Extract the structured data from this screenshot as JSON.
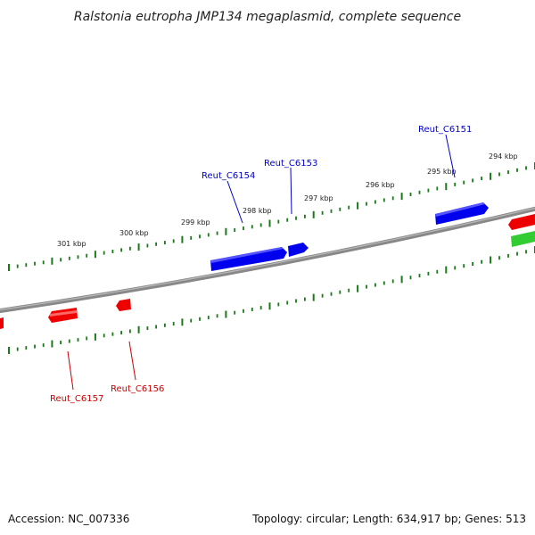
{
  "title": "Ralstonia eutropha JMP134 megaplasmid, complete sequence",
  "footer": {
    "accession": "Accession: NC_007336",
    "summary": "Topology: circular; Length: 634,917 bp; Genes: 513"
  },
  "colors": {
    "backbone": "#7a7a7a",
    "ticks": "#1a7a1a",
    "forward_gene": "#0000ee",
    "reverse_gene": "#ee0000",
    "other_gene": "#33cc33"
  },
  "scale_labels": [
    "301 kbp",
    "300 kbp",
    "299 kbp",
    "298 kbp",
    "297 kbp",
    "296 kbp",
    "295 kbp",
    "294 kbp"
  ],
  "genes": [
    {
      "name": "Reut_C6151",
      "strand": "forward"
    },
    {
      "name": "Reut_C6153",
      "strand": "forward"
    },
    {
      "name": "Reut_C6154",
      "strand": "forward"
    },
    {
      "name": "Reut_C6156",
      "strand": "reverse"
    },
    {
      "name": "Reut_C6157",
      "strand": "reverse"
    }
  ]
}
